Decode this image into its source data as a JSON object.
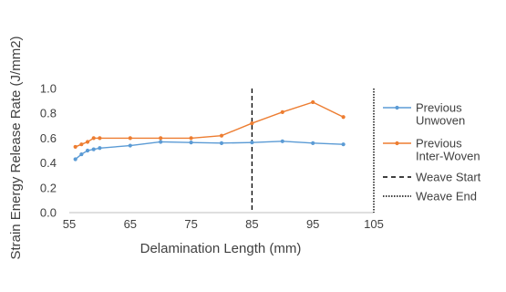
{
  "chart_data": {
    "type": "line",
    "title": "",
    "xlabel": "Delamination Length (mm)",
    "ylabel": "Strain Energy Release Rate (J/mm2)",
    "xlim": [
      55,
      105
    ],
    "ylim": [
      0.0,
      1.0
    ],
    "xticks": [
      "55",
      "65",
      "75",
      "85",
      "95",
      "105"
    ],
    "yticks": [
      "0.0",
      "0.2",
      "0.4",
      "0.6",
      "0.8",
      "1.0"
    ],
    "grid": false,
    "legend_position": "right",
    "series": [
      {
        "name": "Previous Unwoven",
        "legend_lines": [
          "Previous",
          "Unwoven"
        ],
        "color": "#5B9BD5",
        "x": [
          56,
          57,
          58,
          59,
          60,
          65,
          70,
          75,
          80,
          85,
          90,
          95,
          100
        ],
        "y": [
          0.43,
          0.47,
          0.5,
          0.51,
          0.52,
          0.54,
          0.57,
          0.565,
          0.56,
          0.565,
          0.575,
          0.56,
          0.55
        ]
      },
      {
        "name": "Previous Inter-Woven",
        "legend_lines": [
          "Previous",
          "Inter-Woven"
        ],
        "color": "#ED7D31",
        "x": [
          56,
          57,
          58,
          59,
          60,
          65,
          70,
          75,
          80,
          85,
          90,
          95,
          100
        ],
        "y": [
          0.53,
          0.55,
          0.57,
          0.6,
          0.6,
          0.6,
          0.6,
          0.6,
          0.62,
          0.72,
          0.81,
          0.89,
          0.77
        ]
      }
    ],
    "reference_lines": [
      {
        "name": "Weave Start",
        "x": 85,
        "style": "dashed",
        "color": "#000000"
      },
      {
        "name": "Weave End",
        "x": 105,
        "style": "dotted",
        "color": "#000000"
      }
    ]
  }
}
